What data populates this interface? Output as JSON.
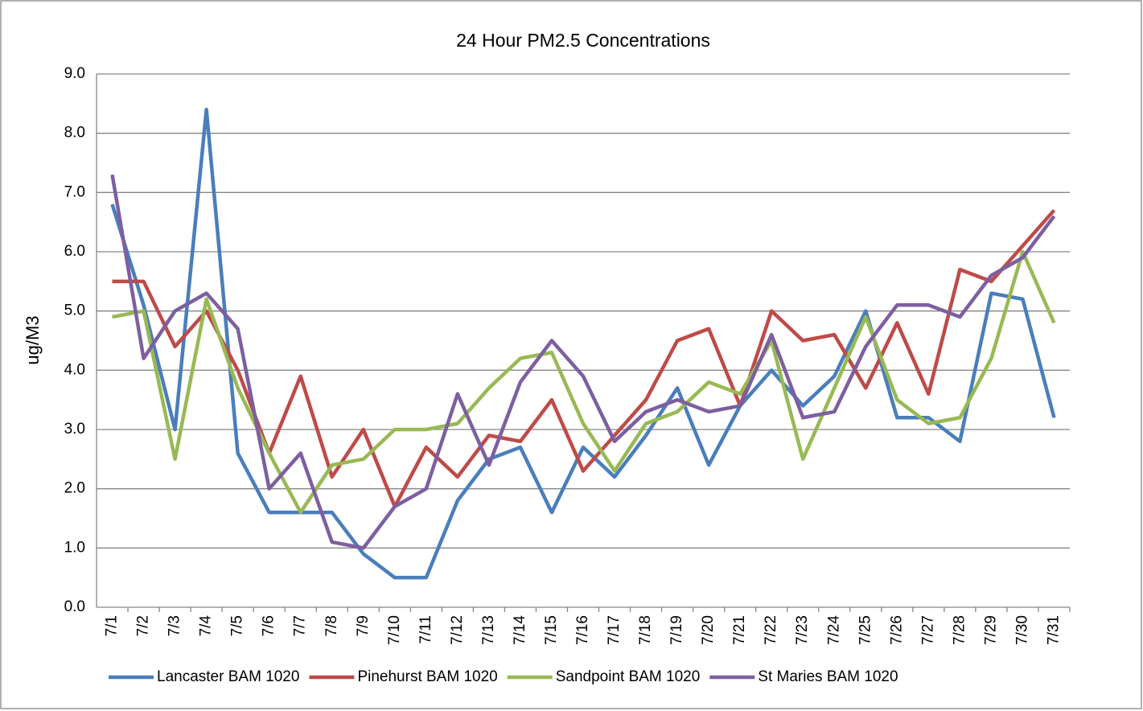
{
  "chart_data": {
    "type": "line",
    "title": "24 Hour PM2.5 Concentrations",
    "y_label": "ug/M3",
    "categories": [
      "7/1",
      "7/2",
      "7/3",
      "7/4",
      "7/5",
      "7/6",
      "7/7",
      "7/8",
      "7/9",
      "7/10",
      "7/11",
      "7/12",
      "7/13",
      "7/14",
      "7/15",
      "7/16",
      "7/17",
      "7/18",
      "7/19",
      "7/20",
      "7/21",
      "7/22",
      "7/23",
      "7/24",
      "7/25",
      "7/26",
      "7/27",
      "7/28",
      "7/29",
      "7/30",
      "7/31"
    ],
    "series": [
      {
        "name": "Lancaster BAM 1020",
        "color": "#4a7ebb",
        "values": [
          6.8,
          5.1,
          3.0,
          8.4,
          2.6,
          1.6,
          1.6,
          1.6,
          0.9,
          0.5,
          0.5,
          1.8,
          2.5,
          2.7,
          1.6,
          2.7,
          2.2,
          2.9,
          3.7,
          2.4,
          3.4,
          4.0,
          3.4,
          3.9,
          5.0,
          3.2,
          3.2,
          2.8,
          5.3,
          5.2,
          3.2
        ]
      },
      {
        "name": "Pinehurst BAM 1020",
        "color": "#be4b48",
        "values": [
          5.5,
          5.5,
          4.4,
          5.0,
          4.0,
          2.6,
          3.9,
          2.2,
          3.0,
          1.7,
          2.7,
          2.2,
          2.9,
          2.8,
          3.5,
          2.3,
          2.9,
          3.5,
          4.5,
          4.7,
          3.4,
          5.0,
          4.5,
          4.6,
          3.7,
          4.8,
          3.6,
          5.7,
          5.5,
          6.1,
          6.7
        ]
      },
      {
        "name": "Sandpoint BAM 1020",
        "color": "#98b954",
        "values": [
          4.9,
          5.0,
          2.5,
          5.2,
          3.7,
          2.6,
          1.6,
          2.4,
          2.5,
          3.0,
          3.0,
          3.1,
          3.7,
          4.2,
          4.3,
          3.1,
          2.3,
          3.1,
          3.3,
          3.8,
          3.6,
          4.5,
          2.5,
          3.7,
          4.9,
          3.5,
          3.1,
          3.2,
          4.2,
          6.0,
          4.8
        ]
      },
      {
        "name": "St Maries BAM 1020",
        "color": "#7d5fa0",
        "values": [
          7.3,
          4.2,
          5.0,
          5.3,
          4.7,
          2.0,
          2.6,
          1.1,
          1.0,
          1.7,
          2.0,
          3.6,
          2.4,
          3.8,
          4.5,
          3.9,
          2.8,
          3.3,
          3.5,
          3.3,
          3.4,
          4.6,
          3.2,
          3.3,
          4.4,
          5.1,
          5.1,
          4.9,
          5.6,
          5.9,
          6.6
        ]
      }
    ],
    "ylim": [
      0,
      9
    ],
    "yticks": [
      {
        "value": 0,
        "label": "0.0"
      },
      {
        "value": 1,
        "label": "1.0"
      },
      {
        "value": 2,
        "label": "2.0"
      },
      {
        "value": 3,
        "label": "3.0"
      },
      {
        "value": 4,
        "label": "4.0"
      },
      {
        "value": 5,
        "label": "5.0"
      },
      {
        "value": 6,
        "label": "6.0"
      },
      {
        "value": 7,
        "label": "7.0"
      },
      {
        "value": 8,
        "label": "8.0"
      },
      {
        "value": 9,
        "label": "9.0"
      }
    ],
    "grid": true,
    "legend": "bottom"
  }
}
